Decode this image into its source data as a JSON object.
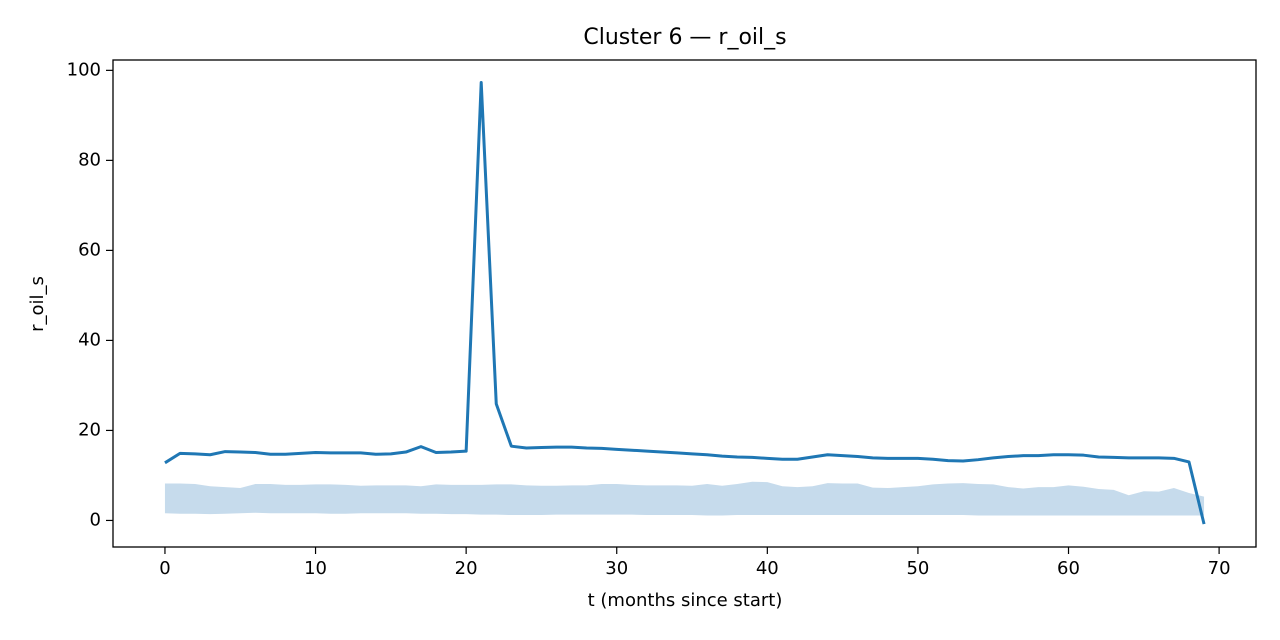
{
  "chart_data": {
    "type": "line",
    "title": "Cluster 6 — r_oil_s",
    "x_label": "t (months since start)",
    "y_label": "r_oil_s",
    "x": [
      0,
      1,
      2,
      3,
      4,
      5,
      6,
      7,
      8,
      9,
      10,
      11,
      12,
      13,
      14,
      15,
      16,
      17,
      18,
      19,
      20,
      21,
      22,
      23,
      24,
      25,
      26,
      27,
      28,
      29,
      30,
      31,
      32,
      33,
      34,
      35,
      36,
      37,
      38,
      39,
      40,
      41,
      42,
      43,
      44,
      45,
      46,
      47,
      48,
      49,
      50,
      51,
      52,
      53,
      54,
      55,
      56,
      57,
      58,
      59,
      60,
      61,
      62,
      63,
      64,
      65,
      66,
      67,
      68,
      69
    ],
    "series": [
      {
        "color": "#1f77b4",
        "values": [
          12.8,
          14.9,
          14.8,
          14.6,
          15.3,
          15.2,
          15.1,
          14.7,
          14.7,
          14.9,
          15.1,
          15.0,
          15.0,
          15.0,
          14.7,
          14.8,
          15.2,
          16.4,
          15.1,
          15.2,
          15.4,
          97.3,
          25.9,
          16.5,
          16.1,
          16.2,
          16.3,
          16.3,
          16.1,
          16.0,
          15.8,
          15.6,
          15.4,
          15.2,
          15.0,
          14.8,
          14.6,
          14.3,
          14.1,
          14.0,
          13.8,
          13.6,
          13.6,
          14.1,
          14.6,
          14.4,
          14.2,
          13.9,
          13.8,
          13.8,
          13.8,
          13.6,
          13.3,
          13.2,
          13.5,
          13.9,
          14.2,
          14.4,
          14.4,
          14.6,
          14.6,
          14.5,
          14.1,
          14.0,
          13.9,
          13.9,
          13.9,
          13.8,
          13.0,
          -0.8
        ]
      }
    ],
    "band": {
      "color": "#c6dbec",
      "upper": [
        8.2,
        8.2,
        8.1,
        7.6,
        7.4,
        7.2,
        8.1,
        8.1,
        7.9,
        7.9,
        8.0,
        8.0,
        7.9,
        7.7,
        7.8,
        7.8,
        7.8,
        7.6,
        8.0,
        7.9,
        7.9,
        7.9,
        8.0,
        8.0,
        7.8,
        7.7,
        7.7,
        7.8,
        7.8,
        8.1,
        8.1,
        7.9,
        7.8,
        7.8,
        7.8,
        7.7,
        8.1,
        7.7,
        8.1,
        8.6,
        8.5,
        7.6,
        7.4,
        7.6,
        8.3,
        8.2,
        8.2,
        7.3,
        7.2,
        7.4,
        7.6,
        8.0,
        8.2,
        8.3,
        8.1,
        8.0,
        7.4,
        7.1,
        7.4,
        7.4,
        7.8,
        7.5,
        7.0,
        6.8,
        5.6,
        6.5,
        6.4,
        7.2,
        6.1,
        5.3
      ],
      "lower": [
        1.6,
        1.5,
        1.5,
        1.4,
        1.5,
        1.6,
        1.7,
        1.6,
        1.6,
        1.6,
        1.6,
        1.5,
        1.5,
        1.6,
        1.6,
        1.6,
        1.6,
        1.5,
        1.5,
        1.4,
        1.4,
        1.3,
        1.3,
        1.2,
        1.2,
        1.2,
        1.3,
        1.3,
        1.3,
        1.3,
        1.3,
        1.3,
        1.2,
        1.2,
        1.2,
        1.2,
        1.1,
        1.1,
        1.2,
        1.2,
        1.2,
        1.2,
        1.2,
        1.2,
        1.2,
        1.2,
        1.2,
        1.2,
        1.2,
        1.2,
        1.2,
        1.2,
        1.2,
        1.2,
        1.1,
        1.1,
        1.1,
        1.1,
        1.1,
        1.1,
        1.1,
        1.1,
        1.1,
        1.1,
        1.1,
        1.1,
        1.1,
        1.1,
        1.1,
        1.1
      ]
    },
    "xlim": [
      -3.45,
      72.45
    ],
    "ylim": [
      -5.9,
      102.3
    ],
    "xticks": [
      0,
      10,
      20,
      30,
      40,
      50,
      60,
      70
    ],
    "yticks": [
      0,
      20,
      40,
      60,
      80,
      100
    ],
    "grid": false
  }
}
